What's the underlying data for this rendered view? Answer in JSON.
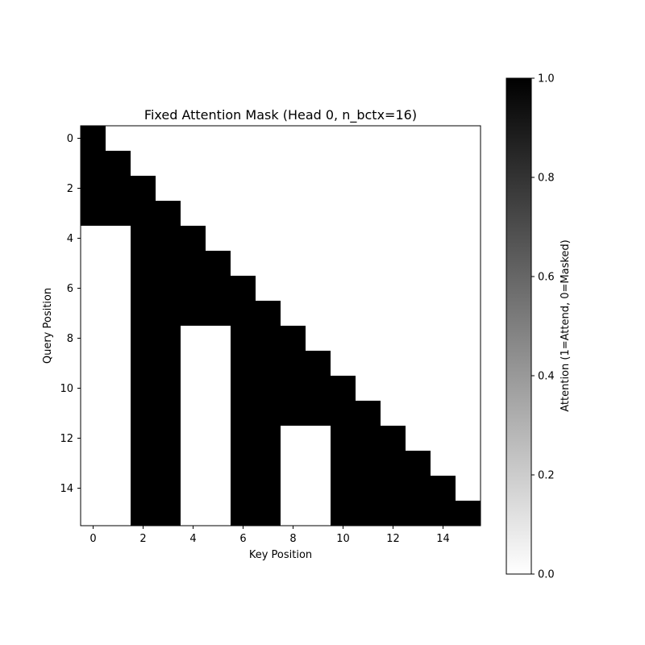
{
  "chart_data": {
    "type": "heatmap",
    "title": "Fixed Attention Mask (Head 0, n_bctx=16)",
    "xlabel": "Key Position",
    "ylabel": "Query Position",
    "x_ticks": [
      0,
      2,
      4,
      6,
      8,
      10,
      12,
      14
    ],
    "y_ticks": [
      0,
      2,
      4,
      6,
      8,
      10,
      12,
      14
    ],
    "xlim": [
      -0.5,
      15.5
    ],
    "ylim": [
      15.5,
      -0.5
    ],
    "colorbar": {
      "label": "Attention (1=Attend, 0=Masked)",
      "ticks": [
        "0.0",
        "0.2",
        "0.4",
        "0.6",
        "0.8",
        "1.0"
      ],
      "range": [
        0,
        1
      ],
      "colormap": "gray_r",
      "low_color": "#ffffff",
      "high_color": "#000000"
    },
    "matrix": [
      [
        1,
        0,
        0,
        0,
        0,
        0,
        0,
        0,
        0,
        0,
        0,
        0,
        0,
        0,
        0,
        0
      ],
      [
        1,
        1,
        0,
        0,
        0,
        0,
        0,
        0,
        0,
        0,
        0,
        0,
        0,
        0,
        0,
        0
      ],
      [
        1,
        1,
        1,
        0,
        0,
        0,
        0,
        0,
        0,
        0,
        0,
        0,
        0,
        0,
        0,
        0
      ],
      [
        1,
        1,
        1,
        1,
        0,
        0,
        0,
        0,
        0,
        0,
        0,
        0,
        0,
        0,
        0,
        0
      ],
      [
        0,
        0,
        1,
        1,
        1,
        0,
        0,
        0,
        0,
        0,
        0,
        0,
        0,
        0,
        0,
        0
      ],
      [
        0,
        0,
        1,
        1,
        1,
        1,
        0,
        0,
        0,
        0,
        0,
        0,
        0,
        0,
        0,
        0
      ],
      [
        0,
        0,
        1,
        1,
        1,
        1,
        1,
        0,
        0,
        0,
        0,
        0,
        0,
        0,
        0,
        0
      ],
      [
        0,
        0,
        1,
        1,
        1,
        1,
        1,
        1,
        0,
        0,
        0,
        0,
        0,
        0,
        0,
        0
      ],
      [
        0,
        0,
        1,
        1,
        0,
        0,
        1,
        1,
        1,
        0,
        0,
        0,
        0,
        0,
        0,
        0
      ],
      [
        0,
        0,
        1,
        1,
        0,
        0,
        1,
        1,
        1,
        1,
        0,
        0,
        0,
        0,
        0,
        0
      ],
      [
        0,
        0,
        1,
        1,
        0,
        0,
        1,
        1,
        1,
        1,
        1,
        0,
        0,
        0,
        0,
        0
      ],
      [
        0,
        0,
        1,
        1,
        0,
        0,
        1,
        1,
        1,
        1,
        1,
        1,
        0,
        0,
        0,
        0
      ],
      [
        0,
        0,
        1,
        1,
        0,
        0,
        1,
        1,
        0,
        0,
        1,
        1,
        1,
        0,
        0,
        0
      ],
      [
        0,
        0,
        1,
        1,
        0,
        0,
        1,
        1,
        0,
        0,
        1,
        1,
        1,
        1,
        0,
        0
      ],
      [
        0,
        0,
        1,
        1,
        0,
        0,
        1,
        1,
        0,
        0,
        1,
        1,
        1,
        1,
        1,
        0
      ],
      [
        0,
        0,
        1,
        1,
        0,
        0,
        1,
        1,
        0,
        0,
        1,
        1,
        1,
        1,
        1,
        1
      ]
    ]
  }
}
